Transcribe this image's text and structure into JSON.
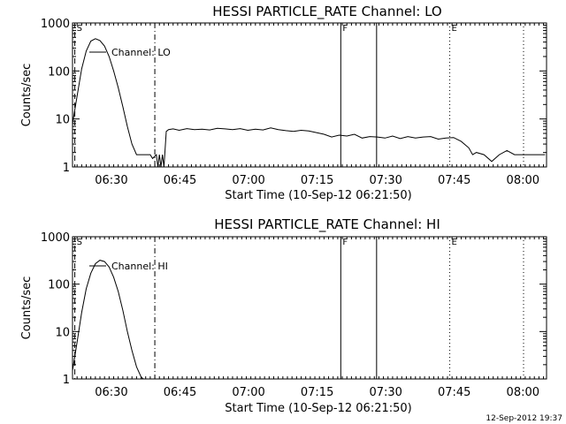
{
  "footer": {
    "timestamp": "12-Sep-2012 19:37"
  },
  "chart_data": [
    {
      "type": "line",
      "title": "HESSI PARTICLE_RATE Channel: LO",
      "xlabel": "Start Time (10-Sep-12 06:21:50)",
      "ylabel": "Counts/sec",
      "yscale": "log",
      "ylim": [
        1,
        1000
      ],
      "y_ticks": [
        {
          "v": 1,
          "label": "1"
        },
        {
          "v": 10,
          "label": "10"
        },
        {
          "v": 100,
          "label": "100"
        },
        {
          "v": 1000,
          "label": "1000"
        }
      ],
      "x_ticks": [
        {
          "v": 510,
          "label": "06:30"
        },
        {
          "v": 1410,
          "label": "06:45"
        },
        {
          "v": 2310,
          "label": "07:00"
        },
        {
          "v": 3210,
          "label": "07:15"
        },
        {
          "v": 4110,
          "label": "07:30"
        },
        {
          "v": 5010,
          "label": "07:45"
        },
        {
          "v": 5910,
          "label": "08:00"
        }
      ],
      "xlim": [
        0,
        6220
      ],
      "legend": {
        "label": "Channel: LO",
        "placement": "top-left"
      },
      "markers": [
        {
          "label": "S",
          "x": 30,
          "style": "dashed"
        },
        {
          "label": "",
          "x": 1080,
          "style": "dashdot"
        },
        {
          "label": "F",
          "x": 3520,
          "style": "solid"
        },
        {
          "label": "",
          "x": 3990,
          "style": "solid"
        },
        {
          "label": "E",
          "x": 4950,
          "style": "dotted"
        },
        {
          "label": "",
          "x": 6300,
          "style": "dotted"
        }
      ],
      "series": [
        {
          "x": [
            0,
            60,
            120,
            180,
            240,
            300,
            360,
            420,
            480,
            540,
            600,
            660,
            720,
            780,
            840,
            900,
            960,
            1020,
            1050,
            1100,
            1120,
            1140,
            1160,
            1180,
            1200,
            1230,
            1260,
            1320,
            1400,
            1500,
            1600,
            1700,
            1800,
            1900,
            2000,
            2100,
            2200,
            2300,
            2400,
            2500,
            2600,
            2700,
            2800,
            2900,
            3000,
            3100,
            3200,
            3300,
            3400,
            3500,
            3600,
            3700,
            3800,
            3900,
            4000,
            4100,
            4200,
            4300,
            4400,
            4500,
            4600,
            4700,
            4800,
            4900,
            5000,
            5100,
            5200,
            5250,
            5300,
            5400,
            5500,
            5600,
            5700,
            5800,
            6200
          ],
          "values": [
            8,
            30,
            110,
            260,
            420,
            470,
            430,
            330,
            200,
            100,
            45,
            18,
            7,
            3,
            1.8,
            1.8,
            1.8,
            1.8,
            1.5,
            1.8,
            1,
            1.8,
            1,
            1.8,
            1,
            5.5,
            6,
            6.2,
            5.8,
            6.3,
            6,
            6.1,
            5.9,
            6.4,
            6.2,
            6,
            6.3,
            5.8,
            6.1,
            5.9,
            6.5,
            6,
            5.7,
            5.5,
            5.8,
            5.6,
            5.2,
            4.8,
            4.2,
            4.6,
            4.4,
            4.8,
            4.0,
            4.3,
            4.2,
            4.0,
            4.4,
            3.9,
            4.3,
            4.0,
            4.2,
            4.3,
            3.8,
            4.0,
            4.1,
            3.4,
            2.5,
            1.8,
            2.0,
            1.8,
            1.3,
            1.8,
            2.2,
            1.8,
            1.8
          ]
        }
      ]
    },
    {
      "type": "line",
      "title": "HESSI PARTICLE_RATE Channel: HI",
      "xlabel": "Start Time (10-Sep-12 06:21:50)",
      "ylabel": "Counts/sec",
      "yscale": "log",
      "ylim": [
        1,
        1000
      ],
      "y_ticks": [
        {
          "v": 1,
          "label": "1"
        },
        {
          "v": 10,
          "label": "10"
        },
        {
          "v": 100,
          "label": "100"
        },
        {
          "v": 1000,
          "label": "1000"
        }
      ],
      "x_ticks": [
        {
          "v": 510,
          "label": "06:30"
        },
        {
          "v": 1410,
          "label": "06:45"
        },
        {
          "v": 2310,
          "label": "07:00"
        },
        {
          "v": 3210,
          "label": "07:15"
        },
        {
          "v": 4110,
          "label": "07:30"
        },
        {
          "v": 5010,
          "label": "07:45"
        },
        {
          "v": 5910,
          "label": "08:00"
        }
      ],
      "xlim": [
        0,
        6220
      ],
      "legend": {
        "label": "Channel: HI",
        "placement": "top-left"
      },
      "markers": [
        {
          "label": "S",
          "x": 30,
          "style": "dashed"
        },
        {
          "label": "",
          "x": 1080,
          "style": "dashdot"
        },
        {
          "label": "F",
          "x": 3520,
          "style": "solid"
        },
        {
          "label": "",
          "x": 3990,
          "style": "solid"
        },
        {
          "label": "E",
          "x": 4950,
          "style": "dotted"
        },
        {
          "label": "",
          "x": 6300,
          "style": "dotted"
        }
      ],
      "series": [
        {
          "x": [
            0,
            60,
            120,
            180,
            240,
            300,
            360,
            420,
            480,
            540,
            600,
            660,
            720,
            780,
            840,
            900,
            930
          ],
          "values": [
            1.5,
            6,
            25,
            80,
            170,
            270,
            320,
            300,
            230,
            140,
            70,
            28,
            10,
            4,
            1.8,
            1.1,
            1
          ]
        }
      ]
    }
  ]
}
